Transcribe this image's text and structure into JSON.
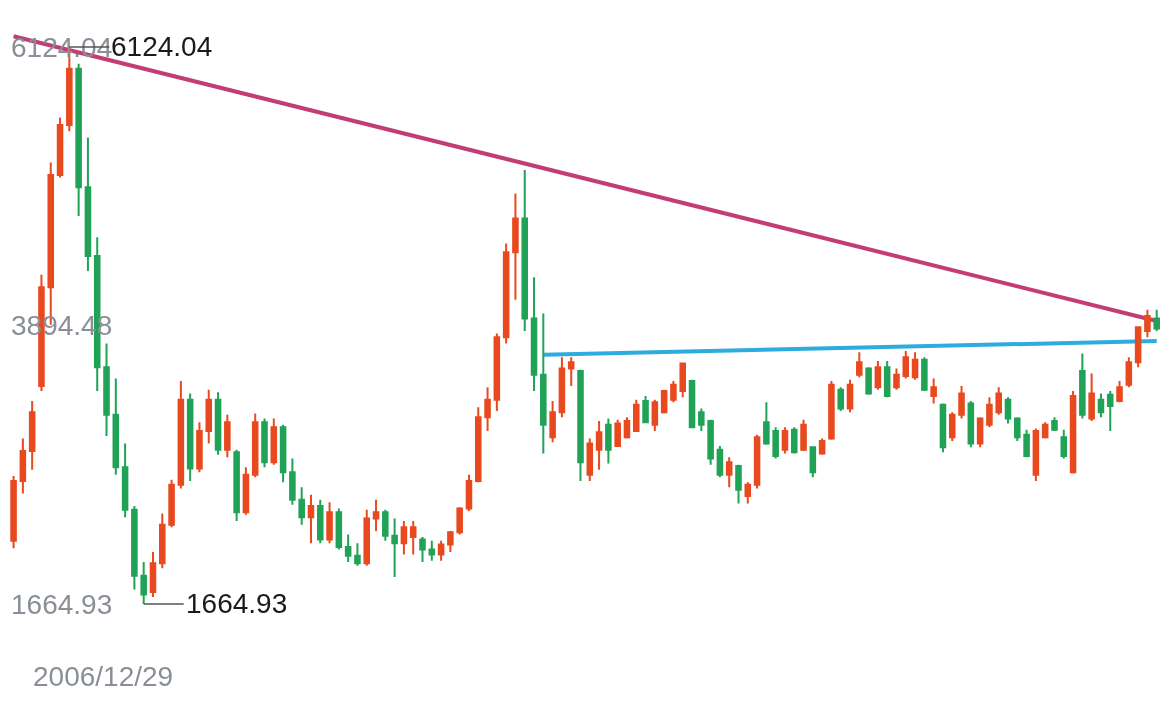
{
  "chart_data": {
    "type": "candlestick",
    "categories": [
      null,
      null,
      null,
      null,
      null,
      null,
      null,
      null,
      null,
      null,
      null,
      null,
      null,
      null,
      null,
      null,
      null,
      null,
      null,
      null,
      null,
      null,
      null,
      null,
      null,
      null,
      null,
      null,
      null,
      null,
      null,
      null,
      null,
      null,
      null,
      null,
      null,
      null,
      null,
      null,
      null,
      null,
      null,
      null,
      null,
      null,
      null,
      null,
      null,
      null,
      null,
      null,
      null,
      null,
      null,
      null,
      null,
      null,
      null,
      null,
      null,
      null,
      null,
      null,
      null,
      null,
      null,
      null,
      null,
      null,
      null,
      null,
      null,
      null,
      null,
      null,
      null,
      null,
      null,
      null,
      null,
      null,
      null,
      null,
      null,
      null,
      null,
      null,
      null,
      null,
      null,
      null,
      null,
      null,
      null,
      null,
      null,
      null,
      null,
      null,
      null,
      null,
      null,
      null,
      null,
      null,
      null,
      null,
      null,
      null,
      null,
      null,
      null,
      null,
      null,
      null,
      null,
      null,
      null,
      null,
      null,
      null,
      null,
      null
    ],
    "ohlc": [
      [
        2170,
        2690,
        2110,
        2650
      ],
      [
        2650,
        2990,
        2550,
        2890
      ],
      [
        2890,
        3290,
        2740,
        3200
      ],
      [
        3410,
        4300,
        3370,
        4200
      ],
      [
        4200,
        5200,
        3900,
        5100
      ],
      [
        5100,
        5560,
        5080,
        5500
      ],
      [
        5500,
        6124.04,
        5450,
        5950
      ],
      [
        5950,
        5990,
        4770,
        5000
      ],
      [
        5000,
        5400,
        4330,
        4450
      ],
      [
        4450,
        4600,
        3370,
        3560
      ],
      [
        3560,
        3750,
        3010,
        3180
      ],
      [
        3180,
        3470,
        2700,
        2760
      ],
      [
        2760,
        2950,
        2360,
        2420
      ],
      [
        2420,
        2450,
        1780,
        1890
      ],
      [
        1890,
        2000,
        1664.93,
        1740
      ],
      [
        1760,
        2080,
        1720,
        1990
      ],
      [
        1990,
        2390,
        1950,
        2300
      ],
      [
        2300,
        2660,
        2280,
        2620
      ],
      [
        2620,
        3450,
        2590,
        3300
      ],
      [
        3300,
        3350,
        2650,
        2750
      ],
      [
        2750,
        3120,
        2720,
        3050
      ],
      [
        3050,
        3380,
        2950,
        3300
      ],
      [
        3300,
        3360,
        2860,
        2900
      ],
      [
        2900,
        3180,
        2840,
        3120
      ],
      [
        2880,
        2900,
        2330,
        2400
      ],
      [
        2400,
        2760,
        2380,
        2700
      ],
      [
        2700,
        3190,
        2680,
        3120
      ],
      [
        3120,
        3150,
        2760,
        2800
      ],
      [
        2800,
        3150,
        2780,
        3080
      ],
      [
        3080,
        3100,
        2640,
        2720
      ],
      [
        2720,
        2830,
        2460,
        2500
      ],
      [
        2500,
        2600,
        2300,
        2360
      ],
      [
        2360,
        2540,
        2150,
        2450
      ],
      [
        2450,
        2500,
        2150,
        2180
      ],
      [
        2180,
        2480,
        2150,
        2400
      ],
      [
        2400,
        2430,
        2100,
        2120
      ],
      [
        2120,
        2220,
        2000,
        2050
      ],
      [
        2050,
        2150,
        1970,
        1990
      ],
      [
        1990,
        2420,
        1970,
        2350
      ],
      [
        2350,
        2500,
        2250,
        2400
      ],
      [
        2400,
        2420,
        2170,
        2210
      ],
      [
        2210,
        2350,
        1880,
        2150
      ],
      [
        2150,
        2330,
        2060,
        2280
      ],
      [
        2200,
        2330,
        2060,
        2280
      ],
      [
        2180,
        2200,
        2000,
        2100
      ],
      [
        2100,
        2170,
        2010,
        2060
      ],
      [
        2060,
        2170,
        2010,
        2140
      ],
      [
        2140,
        2250,
        2080,
        2240
      ],
      [
        2240,
        2440,
        2220,
        2430
      ],
      [
        2430,
        2700,
        2410,
        2650
      ],
      [
        2650,
        3240,
        2640,
        3160
      ],
      [
        3160,
        3400,
        3050,
        3300
      ],
      [
        3300,
        3830,
        3210,
        3800
      ],
      [
        3800,
        4550,
        3750,
        4480
      ],
      [
        4480,
        4950,
        4100,
        4750
      ],
      [
        4750,
        5140,
        3850,
        3950
      ],
      [
        3950,
        4280,
        3370,
        3500
      ],
      [
        3500,
        3990,
        2870,
        3100
      ],
      [
        3000,
        3290,
        2960,
        3200
      ],
      [
        3200,
        3640,
        3160,
        3550
      ],
      [
        3550,
        3640,
        3410,
        3600
      ],
      [
        3530,
        3540,
        2650,
        2800
      ],
      [
        2700,
        2990,
        2650,
        2950
      ],
      [
        2900,
        3130,
        2740,
        3040
      ],
      [
        3100,
        3150,
        2790,
        2900
      ],
      [
        2930,
        3140,
        2930,
        3110
      ],
      [
        3000,
        3160,
        2990,
        3130
      ],
      [
        3050,
        3300,
        3050,
        3260
      ],
      [
        3290,
        3330,
        3120,
        3120
      ],
      [
        3100,
        3300,
        3050,
        3280
      ],
      [
        3200,
        3380,
        3190,
        3370
      ],
      [
        3300,
        3450,
        3280,
        3420
      ],
      [
        3370,
        3590,
        3320,
        3590
      ],
      [
        3450,
        3460,
        3080,
        3080
      ],
      [
        3200,
        3230,
        3050,
        3100
      ],
      [
        3130,
        3140,
        2780,
        2830
      ],
      [
        2900,
        2930,
        2680,
        2700
      ],
      [
        2700,
        2840,
        2600,
        2800
      ],
      [
        2770,
        2780,
        2470,
        2580
      ],
      [
        2530,
        2640,
        2470,
        2620
      ],
      [
        2620,
        3020,
        2590,
        3000
      ],
      [
        3120,
        3280,
        2940,
        2950
      ],
      [
        3050,
        3080,
        2830,
        2850
      ],
      [
        2900,
        3080,
        2870,
        3050
      ],
      [
        3060,
        3080,
        2870,
        2880
      ],
      [
        2900,
        3140,
        2890,
        3100
      ],
      [
        2920,
        2920,
        2680,
        2720
      ],
      [
        2870,
        2990,
        2860,
        2970
      ],
      [
        2990,
        3450,
        2980,
        3420
      ],
      [
        3380,
        3400,
        3210,
        3230
      ],
      [
        3230,
        3460,
        3200,
        3420
      ],
      [
        3500,
        3680,
        3480,
        3600
      ],
      [
        3550,
        3560,
        3340,
        3350
      ],
      [
        3400,
        3610,
        3380,
        3560
      ],
      [
        3560,
        3610,
        3320,
        3330
      ],
      [
        3400,
        3550,
        3380,
        3500
      ],
      [
        3490,
        3690,
        3470,
        3640
      ],
      [
        3480,
        3680,
        3460,
        3620
      ],
      [
        3620,
        3640,
        3370,
        3380
      ],
      [
        3330,
        3470,
        3270,
        3400
      ],
      [
        3260,
        3270,
        2880,
        2920
      ],
      [
        3000,
        3200,
        2970,
        3180
      ],
      [
        3180,
        3410,
        3150,
        3350
      ],
      [
        3270,
        3290,
        2920,
        2950
      ],
      [
        2950,
        3160,
        2920,
        3150
      ],
      [
        3100,
        3320,
        3080,
        3260
      ],
      [
        3200,
        3400,
        3180,
        3350
      ],
      [
        3300,
        3320,
        3110,
        3150
      ],
      [
        3150,
        3160,
        2970,
        3000
      ],
      [
        3020,
        3060,
        2840,
        2850
      ],
      [
        2700,
        3070,
        2650,
        3050
      ],
      [
        3000,
        3120,
        2990,
        3100
      ],
      [
        3130,
        3160,
        3050,
        3060
      ],
      [
        3000,
        3060,
        2830,
        2850
      ],
      [
        2720,
        3370,
        2710,
        3330
      ],
      [
        3530,
        3670,
        3150,
        3180
      ],
      [
        3150,
        3510,
        3130,
        3350
      ],
      [
        3300,
        3350,
        3160,
        3200
      ],
      [
        3340,
        3370,
        3050,
        3250
      ],
      [
        3290,
        3450,
        3280,
        3400
      ],
      [
        3420,
        3640,
        3400,
        3600
      ],
      [
        3600,
        3880,
        3560,
        3880
      ],
      [
        3850,
        4020,
        3800,
        3970
      ],
      [
        3950,
        4020,
        3850,
        3870
      ]
    ],
    "colors": [
      "#e8491e",
      "#e8491e",
      "#e8491e",
      "#e8491e",
      "#e8491e",
      "#e8491e",
      "#e8491e",
      "#20a257",
      "#20a257",
      "#20a257",
      "#20a257",
      "#20a257",
      "#20a257",
      "#20a257",
      "#20a257",
      "#e8491e",
      "#e8491e",
      "#e8491e",
      "#e8491e",
      "#20a257",
      "#e8491e",
      "#e8491e",
      "#20a257",
      "#e8491e",
      "#20a257",
      "#e8491e",
      "#e8491e",
      "#20a257",
      "#e8491e",
      "#20a257",
      "#20a257",
      "#20a257",
      "#e8491e",
      "#20a257",
      "#e8491e",
      "#20a257",
      "#20a257",
      "#20a257",
      "#e8491e",
      "#e8491e",
      "#20a257",
      "#20a257",
      "#e8491e",
      "#e8491e",
      "#20a257",
      "#20a257",
      "#e8491e",
      "#e8491e",
      "#e8491e",
      "#e8491e",
      "#e8491e",
      "#e8491e",
      "#e8491e",
      "#e8491e",
      "#e8491e",
      "#20a257",
      "#20a257",
      "#20a257",
      "#e8491e",
      "#e8491e",
      "#e8491e",
      "#20a257",
      "#e8491e",
      "#e8491e",
      "#20a257",
      "#e8491e",
      "#e8491e",
      "#e8491e",
      "#20a257",
      "#e8491e",
      "#e8491e",
      "#e8491e",
      "#e8491e",
      "#20a257",
      "#20a257",
      "#20a257",
      "#20a257",
      "#e8491e",
      "#20a257",
      "#e8491e",
      "#e8491e",
      "#20a257",
      "#20a257",
      "#e8491e",
      "#20a257",
      "#e8491e",
      "#20a257",
      "#e8491e",
      "#e8491e",
      "#20a257",
      "#e8491e",
      "#e8491e",
      "#20a257",
      "#e8491e",
      "#20a257",
      "#e8491e",
      "#e8491e",
      "#e8491e",
      "#20a257",
      "#e8491e",
      "#20a257",
      "#e8491e",
      "#e8491e",
      "#20a257",
      "#e8491e",
      "#e8491e",
      "#e8491e",
      "#20a257",
      "#20a257",
      "#20a257",
      "#e8491e",
      "#e8491e",
      "#20a257",
      "#20a257",
      "#e8491e",
      "#20a257",
      "#e8491e",
      "#20a257",
      "#20a257",
      "#e8491e",
      "#e8491e",
      "#e8491e",
      "#e8491e",
      "#20a257"
    ],
    "series": [
      {
        "type": "line",
        "color": "#c43c74",
        "values": [
          6210,
          null,
          null,
          null,
          null,
          null,
          null,
          null,
          null,
          null,
          null,
          null,
          null,
          null,
          null,
          null,
          null,
          null,
          null,
          null,
          null,
          null,
          null,
          null,
          null,
          null,
          null,
          null,
          null,
          null,
          null,
          null,
          null,
          null,
          null,
          null,
          null,
          null,
          null,
          null,
          null,
          null,
          null,
          null,
          null,
          null,
          null,
          null,
          null,
          null,
          null,
          null,
          null,
          null,
          null,
          null,
          null,
          null,
          null,
          null,
          null,
          null,
          null,
          null,
          null,
          null,
          null,
          null,
          null,
          null,
          null,
          null,
          null,
          null,
          null,
          null,
          null,
          null,
          null,
          null,
          null,
          null,
          null,
          null,
          null,
          null,
          null,
          null,
          null,
          null,
          null,
          null,
          null,
          null,
          null,
          null,
          null,
          null,
          null,
          null,
          null,
          null,
          null,
          null,
          null,
          null,
          null,
          null,
          null,
          null,
          null,
          null,
          null,
          null,
          null,
          null,
          null,
          null,
          null,
          null,
          null,
          null,
          null,
          3930
        ]
      },
      {
        "type": "line",
        "color": "#2cacdf",
        "values": [
          null,
          null,
          null,
          null,
          null,
          null,
          null,
          null,
          null,
          null,
          null,
          null,
          null,
          null,
          null,
          null,
          null,
          null,
          null,
          null,
          null,
          null,
          null,
          null,
          null,
          null,
          null,
          null,
          null,
          null,
          null,
          null,
          null,
          null,
          null,
          null,
          null,
          null,
          null,
          null,
          null,
          null,
          null,
          null,
          null,
          null,
          null,
          null,
          null,
          null,
          null,
          null,
          null,
          null,
          null,
          null,
          null,
          3660,
          null,
          null,
          null,
          null,
          null,
          null,
          null,
          null,
          null,
          null,
          null,
          null,
          null,
          null,
          null,
          null,
          null,
          null,
          null,
          null,
          null,
          null,
          null,
          null,
          null,
          null,
          null,
          null,
          null,
          null,
          null,
          null,
          null,
          null,
          null,
          null,
          null,
          null,
          null,
          null,
          null,
          null,
          null,
          null,
          null,
          null,
          null,
          null,
          null,
          null,
          null,
          null,
          null,
          null,
          null,
          null,
          null,
          null,
          null,
          null,
          null,
          null,
          null,
          null,
          null,
          3770
        ]
      }
    ],
    "ylim": [
      800,
      6500
    ],
    "yticks": [
      1664.93,
      3894.48,
      6124.04
    ],
    "annotations": [
      "6124.04",
      "1664.93",
      "2006/12/29"
    ]
  }
}
